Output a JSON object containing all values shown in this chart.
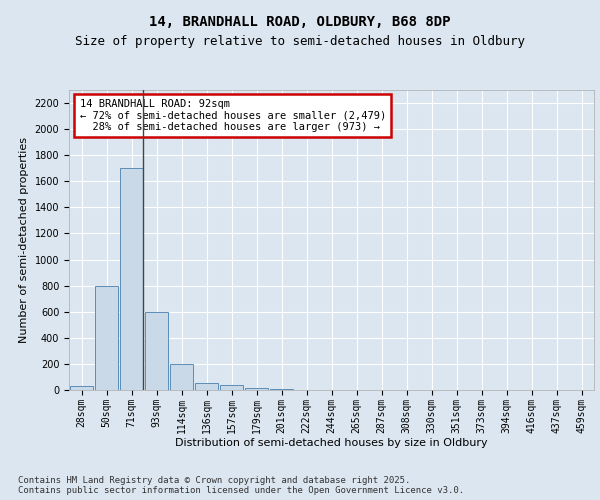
{
  "title_line1": "14, BRANDHALL ROAD, OLDBURY, B68 8DP",
  "title_line2": "Size of property relative to semi-detached houses in Oldbury",
  "xlabel": "Distribution of semi-detached houses by size in Oldbury",
  "ylabel": "Number of semi-detached properties",
  "categories": [
    "28sqm",
    "50sqm",
    "71sqm",
    "93sqm",
    "114sqm",
    "136sqm",
    "157sqm",
    "179sqm",
    "201sqm",
    "222sqm",
    "244sqm",
    "265sqm",
    "287sqm",
    "308sqm",
    "330sqm",
    "351sqm",
    "373sqm",
    "394sqm",
    "416sqm",
    "437sqm",
    "459sqm"
  ],
  "values": [
    30,
    800,
    1700,
    600,
    200,
    50,
    35,
    15,
    5,
    2,
    0,
    0,
    0,
    0,
    0,
    0,
    0,
    0,
    0,
    0,
    0
  ],
  "bar_color": "#c9d9e8",
  "bar_edge_color": "#5b8db8",
  "vline_color": "#444444",
  "annotation_line1": "14 BRANDHALL ROAD: 92sqm",
  "annotation_line2": "← 72% of semi-detached houses are smaller (2,479)",
  "annotation_line3": "  28% of semi-detached houses are larger (973) →",
  "annotation_box_color": "#cc0000",
  "ylim": [
    0,
    2300
  ],
  "yticks": [
    0,
    200,
    400,
    600,
    800,
    1000,
    1200,
    1400,
    1600,
    1800,
    2000,
    2200
  ],
  "background_color": "#dce6f0",
  "plot_background_color": "#dce6f0",
  "grid_color": "#ffffff",
  "footer_text": "Contains HM Land Registry data © Crown copyright and database right 2025.\nContains public sector information licensed under the Open Government Licence v3.0.",
  "title_fontsize": 10,
  "subtitle_fontsize": 9,
  "axis_label_fontsize": 8,
  "tick_fontsize": 7,
  "annotation_fontsize": 7.5,
  "footer_fontsize": 6.5
}
